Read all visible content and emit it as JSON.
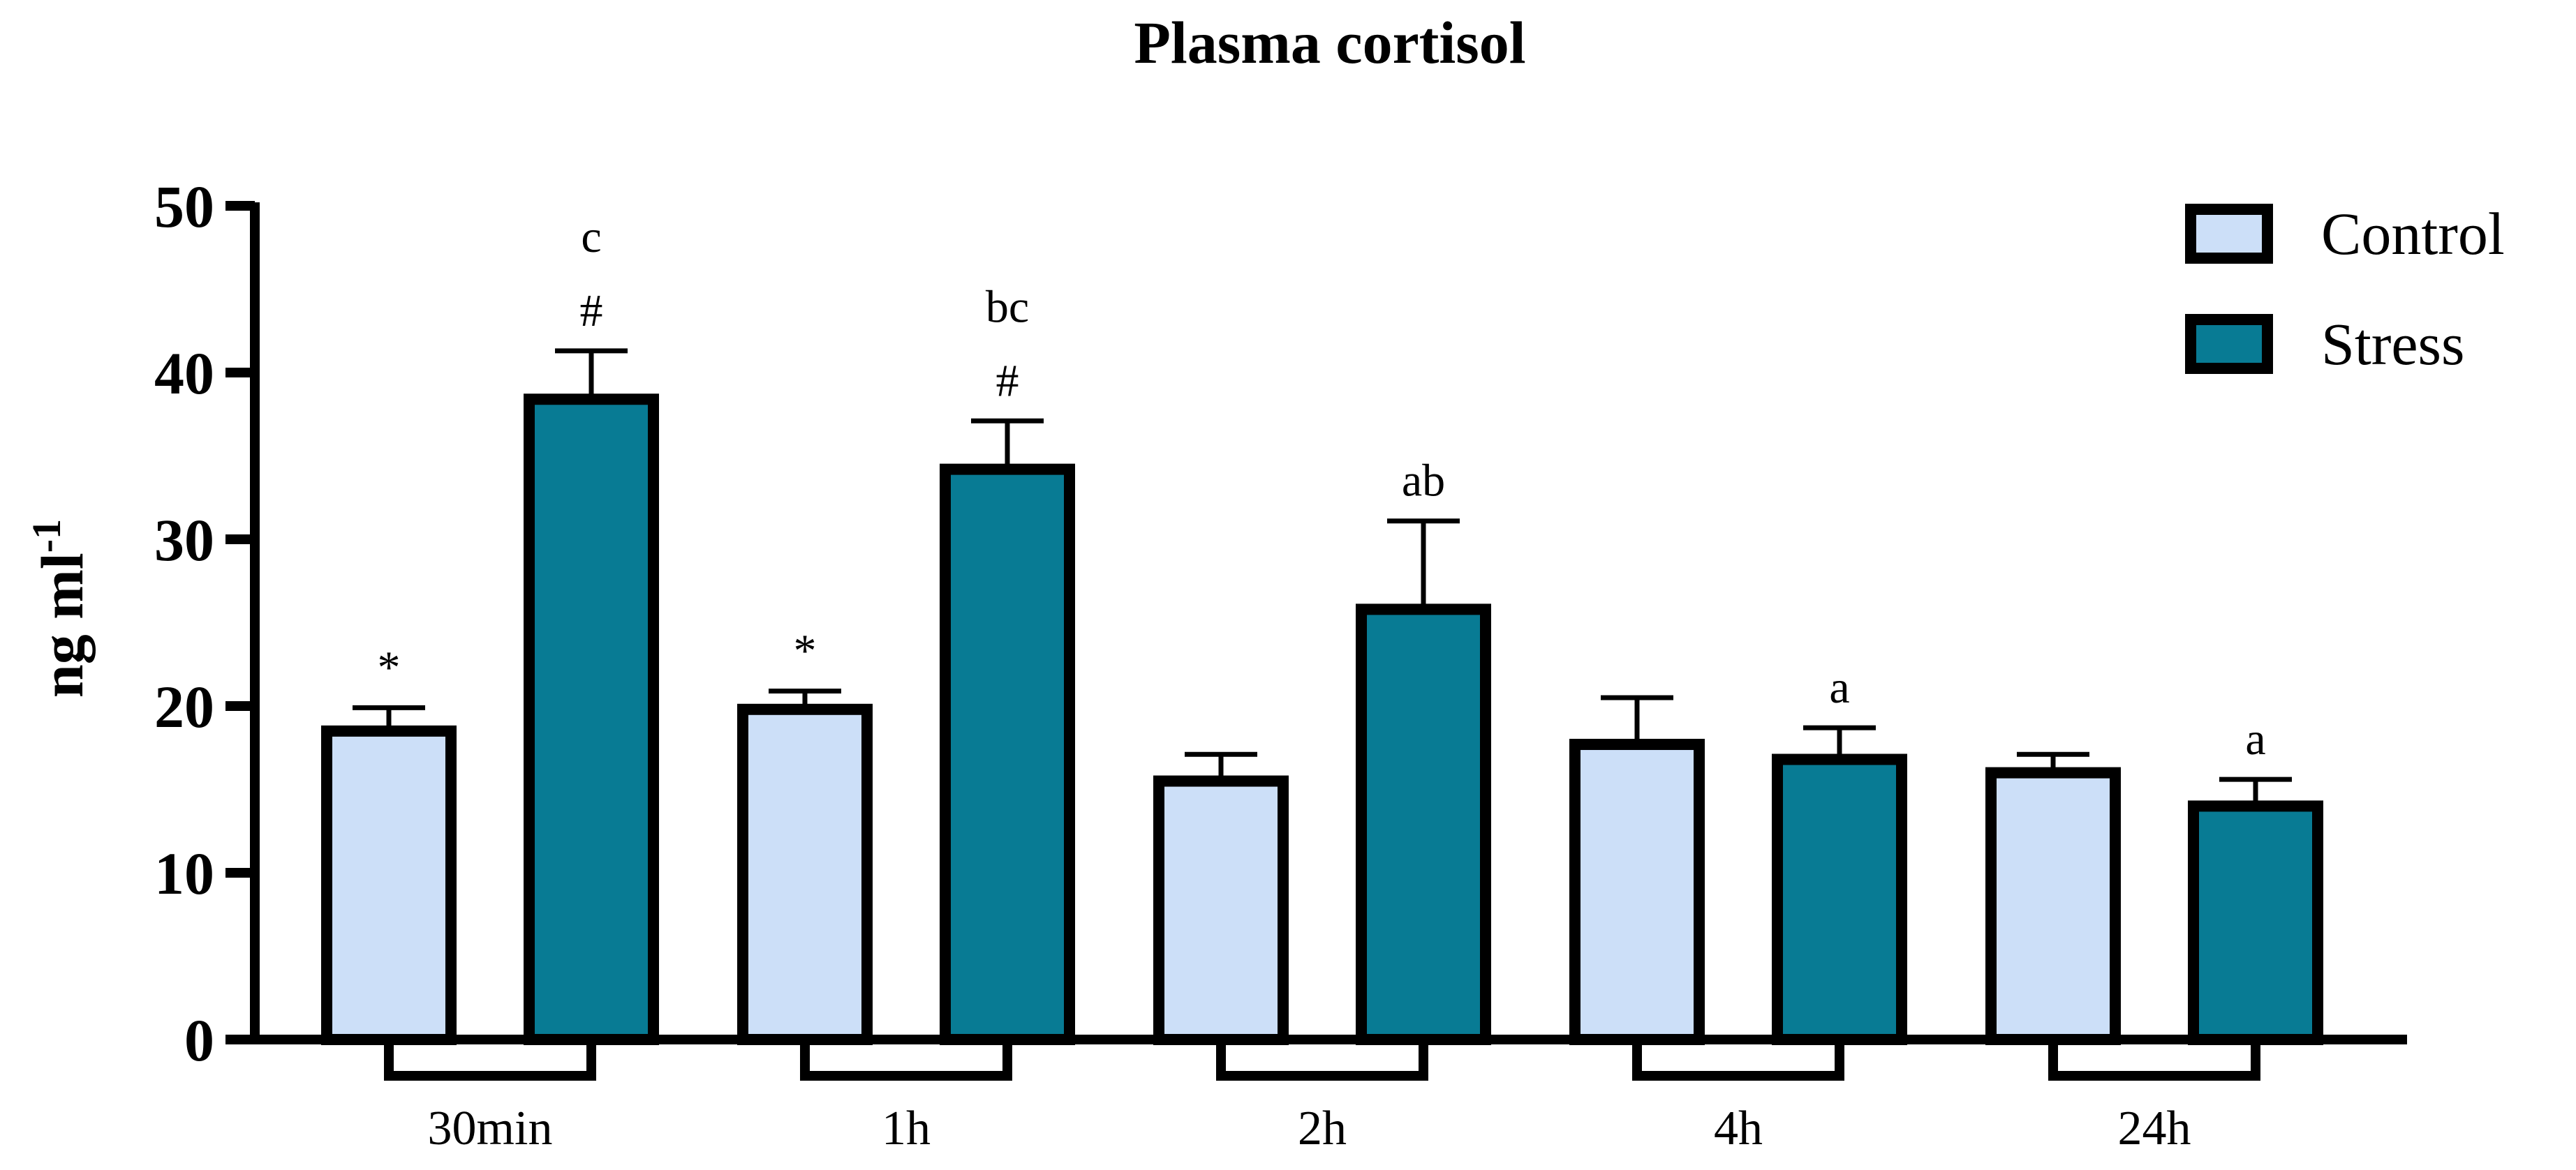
{
  "chart_data": {
    "type": "bar",
    "title": "Plasma cortisol",
    "xlabel": "",
    "ylabel": "ng ml",
    "ylabel_superscript": "-1",
    "ylim": [
      0,
      50
    ],
    "yticks": [
      "0",
      "10",
      "20",
      "30",
      "40",
      "50"
    ],
    "ytick_values": [
      0,
      10,
      20,
      30,
      40,
      50
    ],
    "categories": [
      "30min",
      "1h",
      "2h",
      "4h",
      "24h"
    ],
    "legend_position": "top-right",
    "series": [
      {
        "name": "Control",
        "color": "#CCDFF8",
        "values": [
          18.5,
          19.8,
          15.5,
          17.7,
          16.0
        ],
        "errors": [
          1.4,
          1.1,
          1.6,
          2.8,
          1.1
        ],
        "annotations": [
          [
            "*"
          ],
          [
            "*"
          ],
          [],
          [],
          []
        ]
      },
      {
        "name": "Stress",
        "color": "#087B94",
        "values": [
          38.4,
          34.2,
          25.8,
          16.8,
          14.0
        ],
        "errors": [
          2.9,
          2.9,
          5.3,
          1.9,
          1.6
        ],
        "annotations": [
          [
            "#",
            "c"
          ],
          [
            "#",
            "bc"
          ],
          [
            "ab"
          ],
          [
            "a"
          ],
          [
            "a"
          ]
        ]
      }
    ]
  }
}
